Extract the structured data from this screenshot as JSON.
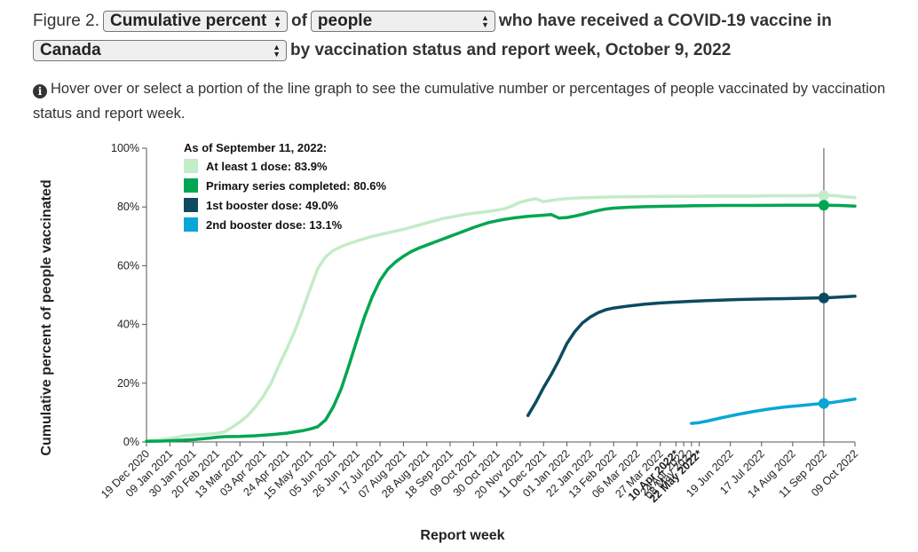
{
  "header": {
    "figure_label": "Figure 2.",
    "measure_select": "Cumulative percent",
    "of_text": "of",
    "population_select": "people",
    "title_suffix_1": "who have received a COVID-19 vaccine in",
    "region_select": "Canada",
    "title_suffix_2": "by vaccination status and report week, October 9, 2022"
  },
  "info": {
    "icon": "info-icon",
    "text": "Hover over or select a portion of the line graph to see the cumulative number or percentages of people vaccinated by vaccination status and report week."
  },
  "chart_data": {
    "type": "line",
    "xlabel": "Report week",
    "ylabel": "Cumulative percent of people vaccinated",
    "ylim": [
      0,
      100
    ],
    "y_ticks": [
      "0%",
      "20%",
      "40%",
      "60%",
      "80%",
      "100%"
    ],
    "x_ticks": [
      {
        "label": "19 Dec 2020",
        "week": 0
      },
      {
        "label": "09 Jan 2021",
        "week": 3
      },
      {
        "label": "30 Jan 2021",
        "week": 6
      },
      {
        "label": "20 Feb 2021",
        "week": 9
      },
      {
        "label": "13 Mar 2021",
        "week": 12
      },
      {
        "label": "03 Apr 2021",
        "week": 15
      },
      {
        "label": "24 Apr 2021",
        "week": 18
      },
      {
        "label": "15 May 2021",
        "week": 21
      },
      {
        "label": "05 Jun 2021",
        "week": 24
      },
      {
        "label": "26 Jun 2021",
        "week": 27
      },
      {
        "label": "17 Jul 2021",
        "week": 30
      },
      {
        "label": "07 Aug 2021",
        "week": 33
      },
      {
        "label": "28 Aug 2021",
        "week": 36
      },
      {
        "label": "18 Sep 2021",
        "week": 39
      },
      {
        "label": "09 Oct 2021",
        "week": 42
      },
      {
        "label": "30 Oct 2021",
        "week": 45
      },
      {
        "label": "20 Nov 2021",
        "week": 48
      },
      {
        "label": "11 Dec 2021",
        "week": 51
      },
      {
        "label": "01 Jan 2022",
        "week": 54
      },
      {
        "label": "22 Jan 2022",
        "week": 57
      },
      {
        "label": "13 Feb 2022",
        "week": 60
      },
      {
        "label": "06 Mar 2022",
        "week": 63
      },
      {
        "label": "27 Mar 2022",
        "week": 66
      },
      {
        "label": "10 Apr 2022*",
        "week": 68,
        "bold": true
      },
      {
        "label": "24 Apr 2022",
        "week": 69
      },
      {
        "label": "08 May 2022",
        "week": 70
      },
      {
        "label": "22 May 2022*",
        "week": 71,
        "bold": true
      },
      {
        "label": "19 Jun 2022",
        "week": 75
      },
      {
        "label": "17 Jul 2022",
        "week": 79
      },
      {
        "label": "14 Aug 2022",
        "week": 83
      },
      {
        "label": "11 Sep 2022",
        "week": 87
      },
      {
        "label": "09 Oct 2022",
        "week": 91
      }
    ],
    "x_range": [
      0,
      91
    ],
    "hover_week": 87,
    "legend_title": "As of September 11, 2022:",
    "legend_placement": "top-left",
    "grid": false,
    "series": [
      {
        "name": "At least 1 dose: 83.9%",
        "color": "#c3ecc8",
        "hover_value": 83.9,
        "points": [
          [
            0,
            0.3
          ],
          [
            1,
            0.5
          ],
          [
            2,
            0.9
          ],
          [
            3,
            1.2
          ],
          [
            4,
            1.6
          ],
          [
            5,
            2.2
          ],
          [
            6,
            2.4
          ],
          [
            7,
            2.5
          ],
          [
            8,
            2.7
          ],
          [
            9,
            2.9
          ],
          [
            10,
            3.4
          ],
          [
            11,
            5.0
          ],
          [
            12,
            6.8
          ],
          [
            13,
            9.0
          ],
          [
            14,
            12.0
          ],
          [
            15,
            15.5
          ],
          [
            16,
            20.0
          ],
          [
            17,
            26.0
          ],
          [
            18,
            31.5
          ],
          [
            19,
            37.5
          ],
          [
            20,
            44.5
          ],
          [
            21,
            52.0
          ],
          [
            22,
            59.0
          ],
          [
            23,
            63.0
          ],
          [
            24,
            65.2
          ],
          [
            25,
            66.5
          ],
          [
            26,
            67.5
          ],
          [
            27,
            68.4
          ],
          [
            28,
            69.2
          ],
          [
            29,
            70.0
          ],
          [
            30,
            70.6
          ],
          [
            31,
            71.2
          ],
          [
            32,
            71.8
          ],
          [
            33,
            72.4
          ],
          [
            34,
            73.1
          ],
          [
            35,
            73.8
          ],
          [
            36,
            74.6
          ],
          [
            37,
            75.3
          ],
          [
            38,
            76.0
          ],
          [
            39,
            76.5
          ],
          [
            40,
            77.0
          ],
          [
            41,
            77.5
          ],
          [
            42,
            77.9
          ],
          [
            43,
            78.2
          ],
          [
            44,
            78.5
          ],
          [
            45,
            78.9
          ],
          [
            46,
            79.4
          ],
          [
            47,
            80.4
          ],
          [
            48,
            81.6
          ],
          [
            49,
            82.3
          ],
          [
            50,
            82.8
          ],
          [
            51,
            81.8
          ],
          [
            52,
            82.2
          ],
          [
            53,
            82.6
          ],
          [
            54,
            82.8
          ],
          [
            55,
            83.0
          ],
          [
            56,
            83.1
          ],
          [
            57,
            83.2
          ],
          [
            58,
            83.3
          ],
          [
            60,
            83.4
          ],
          [
            62,
            83.5
          ],
          [
            64,
            83.5
          ],
          [
            66,
            83.6
          ],
          [
            68,
            83.6
          ],
          [
            70,
            83.6
          ],
          [
            72,
            83.7
          ],
          [
            74,
            83.7
          ],
          [
            76,
            83.7
          ],
          [
            78,
            83.7
          ],
          [
            80,
            83.8
          ],
          [
            82,
            83.8
          ],
          [
            84,
            83.8
          ],
          [
            86,
            83.9
          ],
          [
            87,
            83.9
          ],
          [
            88,
            83.9
          ],
          [
            89,
            83.7
          ],
          [
            90,
            83.4
          ],
          [
            91,
            83.2
          ]
        ]
      },
      {
        "name": "Primary series completed: 80.6%",
        "color": "#00a651",
        "hover_value": 80.6,
        "points": [
          [
            0,
            0.2
          ],
          [
            2,
            0.3
          ],
          [
            4,
            0.5
          ],
          [
            6,
            0.8
          ],
          [
            8,
            1.3
          ],
          [
            9,
            1.6
          ],
          [
            10,
            1.8
          ],
          [
            12,
            1.9
          ],
          [
            14,
            2.1
          ],
          [
            16,
            2.5
          ],
          [
            18,
            3.0
          ],
          [
            20,
            3.8
          ],
          [
            21,
            4.4
          ],
          [
            22,
            5.2
          ],
          [
            23,
            7.5
          ],
          [
            24,
            12.0
          ],
          [
            25,
            18.0
          ],
          [
            26,
            26.0
          ],
          [
            27,
            34.5
          ],
          [
            28,
            42.5
          ],
          [
            29,
            49.5
          ],
          [
            30,
            55.0
          ],
          [
            31,
            58.8
          ],
          [
            32,
            61.3
          ],
          [
            33,
            63.2
          ],
          [
            34,
            64.8
          ],
          [
            35,
            66.0
          ],
          [
            36,
            67.0
          ],
          [
            37,
            68.0
          ],
          [
            38,
            69.0
          ],
          [
            39,
            70.0
          ],
          [
            40,
            71.0
          ],
          [
            41,
            72.0
          ],
          [
            42,
            73.0
          ],
          [
            43,
            73.9
          ],
          [
            44,
            74.7
          ],
          [
            45,
            75.3
          ],
          [
            46,
            75.8
          ],
          [
            47,
            76.2
          ],
          [
            48,
            76.5
          ],
          [
            49,
            76.8
          ],
          [
            50,
            77.0
          ],
          [
            51,
            77.2
          ],
          [
            52,
            77.4
          ],
          [
            53,
            76.2
          ],
          [
            54,
            76.4
          ],
          [
            55,
            76.9
          ],
          [
            56,
            77.5
          ],
          [
            57,
            78.2
          ],
          [
            58,
            78.8
          ],
          [
            59,
            79.3
          ],
          [
            60,
            79.6
          ],
          [
            62,
            79.9
          ],
          [
            64,
            80.1
          ],
          [
            66,
            80.2
          ],
          [
            68,
            80.3
          ],
          [
            70,
            80.4
          ],
          [
            74,
            80.5
          ],
          [
            78,
            80.5
          ],
          [
            82,
            80.6
          ],
          [
            86,
            80.6
          ],
          [
            87,
            80.6
          ],
          [
            89,
            80.5
          ],
          [
            91,
            80.3
          ]
        ]
      },
      {
        "name": "1st booster dose: 49.0%",
        "color": "#0d4a5f",
        "hover_value": 49.0,
        "points": [
          [
            49,
            9.0
          ],
          [
            50,
            13.5
          ],
          [
            51,
            18.5
          ],
          [
            52,
            23.0
          ],
          [
            53,
            28.0
          ],
          [
            54,
            33.5
          ],
          [
            55,
            37.5
          ],
          [
            56,
            40.5
          ],
          [
            57,
            42.5
          ],
          [
            58,
            44.0
          ],
          [
            59,
            45.0
          ],
          [
            60,
            45.6
          ],
          [
            62,
            46.3
          ],
          [
            64,
            46.9
          ],
          [
            66,
            47.3
          ],
          [
            68,
            47.6
          ],
          [
            70,
            47.9
          ],
          [
            72,
            48.1
          ],
          [
            74,
            48.3
          ],
          [
            76,
            48.5
          ],
          [
            78,
            48.6
          ],
          [
            80,
            48.7
          ],
          [
            82,
            48.8
          ],
          [
            84,
            48.9
          ],
          [
            86,
            49.0
          ],
          [
            87,
            49.0
          ],
          [
            89,
            49.3
          ],
          [
            91,
            49.6
          ]
        ]
      },
      {
        "name": "2nd booster dose: 13.1%",
        "color": "#0aa6d8",
        "hover_value": 13.1,
        "points": [
          [
            70,
            6.3
          ],
          [
            71,
            6.6
          ],
          [
            72,
            7.1
          ],
          [
            74,
            8.3
          ],
          [
            76,
            9.4
          ],
          [
            78,
            10.4
          ],
          [
            80,
            11.2
          ],
          [
            82,
            11.9
          ],
          [
            84,
            12.4
          ],
          [
            86,
            12.9
          ],
          [
            87,
            13.1
          ],
          [
            88,
            13.4
          ],
          [
            89,
            13.8
          ],
          [
            90,
            14.2
          ],
          [
            91,
            14.6
          ]
        ]
      }
    ]
  }
}
